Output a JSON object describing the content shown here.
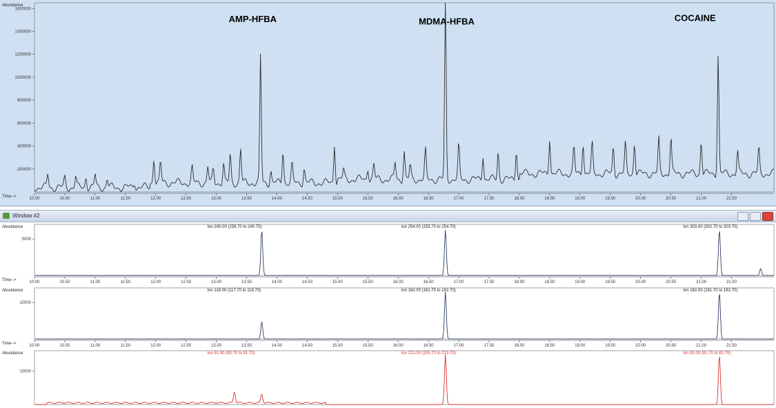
{
  "chart_data": [
    {
      "type": "line",
      "name": "total-ion-chromatogram",
      "ylabel": "Abundance",
      "xlabel": "Time-->",
      "xlim": [
        10.0,
        22.2
      ],
      "ylim": [
        0,
        1650000
      ],
      "y_ticks": [
        200000,
        400000,
        600000,
        800000,
        1000000,
        1200000,
        1400000,
        1600000
      ],
      "y_tick_labels": [
        "200000",
        "400000",
        "600000",
        "800000",
        "1000000",
        "1200000",
        "1400000",
        "1600000"
      ],
      "x_ticks": [
        10.0,
        10.5,
        11.0,
        11.5,
        12.0,
        12.5,
        13.0,
        13.5,
        14.0,
        14.5,
        15.0,
        15.5,
        16.0,
        16.5,
        17.0,
        17.5,
        18.0,
        18.5,
        19.0,
        19.5,
        20.0,
        20.5,
        21.0,
        21.5
      ],
      "x_tick_labels": [
        "10.00",
        "10.50",
        "11.00",
        "11.50",
        "12.00",
        "12.50",
        "13.00",
        "13.50",
        "14.00",
        "14.50",
        "15.00",
        "15.50",
        "16.00",
        "16.50",
        "17.00",
        "17.50",
        "18.00",
        "18.50",
        "19.00",
        "19.50",
        "20.00",
        "20.50",
        "21.00",
        "21.50"
      ],
      "annotations": [
        {
          "text": "AMP-HFBA",
          "x": 13.6,
          "y": 1480000
        },
        {
          "text": "MDMA-HFBA",
          "x": 16.8,
          "y": 1460000
        },
        {
          "text": "COCAINE",
          "x": 20.9,
          "y": 1490000
        }
      ],
      "peaks": [
        {
          "x": 10.22,
          "y": 120000
        },
        {
          "x": 10.5,
          "y": 85000
        },
        {
          "x": 10.68,
          "y": 95000
        },
        {
          "x": 10.85,
          "y": 100000
        },
        {
          "x": 11.0,
          "y": 110000
        },
        {
          "x": 11.2,
          "y": 80000
        },
        {
          "x": 11.65,
          "y": 50000
        },
        {
          "x": 11.97,
          "y": 230000
        },
        {
          "x": 12.08,
          "y": 180000
        },
        {
          "x": 12.6,
          "y": 130000
        },
        {
          "x": 12.86,
          "y": 145000
        },
        {
          "x": 12.95,
          "y": 120000
        },
        {
          "x": 13.12,
          "y": 170000
        },
        {
          "x": 13.23,
          "y": 250000
        },
        {
          "x": 13.4,
          "y": 300000
        },
        {
          "x": 13.73,
          "y": 1120000
        },
        {
          "x": 13.9,
          "y": 110000
        },
        {
          "x": 14.1,
          "y": 300000
        },
        {
          "x": 14.25,
          "y": 160000
        },
        {
          "x": 14.45,
          "y": 130000
        },
        {
          "x": 14.95,
          "y": 350000
        },
        {
          "x": 15.1,
          "y": 80000
        },
        {
          "x": 15.5,
          "y": 110000
        },
        {
          "x": 15.6,
          "y": 130000
        },
        {
          "x": 15.95,
          "y": 150000
        },
        {
          "x": 16.1,
          "y": 250000
        },
        {
          "x": 16.2,
          "y": 120000
        },
        {
          "x": 16.45,
          "y": 250000
        },
        {
          "x": 16.78,
          "y": 1640000
        },
        {
          "x": 17.0,
          "y": 300000
        },
        {
          "x": 17.4,
          "y": 220000
        },
        {
          "x": 17.65,
          "y": 250000
        },
        {
          "x": 17.95,
          "y": 280000
        },
        {
          "x": 18.5,
          "y": 320000
        },
        {
          "x": 18.9,
          "y": 230000
        },
        {
          "x": 19.05,
          "y": 290000
        },
        {
          "x": 19.2,
          "y": 260000
        },
        {
          "x": 19.55,
          "y": 240000
        },
        {
          "x": 19.75,
          "y": 260000
        },
        {
          "x": 19.9,
          "y": 280000
        },
        {
          "x": 20.3,
          "y": 300000
        },
        {
          "x": 20.5,
          "y": 320000
        },
        {
          "x": 21.0,
          "y": 300000
        },
        {
          "x": 21.28,
          "y": 1050000
        },
        {
          "x": 21.6,
          "y": 200000
        },
        {
          "x": 21.95,
          "y": 220000
        }
      ]
    },
    {
      "type": "line",
      "name": "extracted-ion-chromatograms-1",
      "ylabel": "Abundance",
      "xlabel": "Time-->",
      "xlim": [
        10.0,
        22.2
      ],
      "ylim": [
        0,
        7000
      ],
      "y_ticks": [
        5000
      ],
      "y_tick_labels": [
        "5000"
      ],
      "x_ticks": [
        10.0,
        10.5,
        11.0,
        11.5,
        12.0,
        12.5,
        13.0,
        13.5,
        14.0,
        14.5,
        15.0,
        15.5,
        16.0,
        16.5,
        17.0,
        17.5,
        18.0,
        18.5,
        19.0,
        19.5,
        20.0,
        20.5,
        21.0,
        21.5
      ],
      "x_tick_labels": [
        "10.00",
        "10.50",
        "11.00",
        "11.50",
        "12.00",
        "12.50",
        "13.00",
        "13.50",
        "14.00",
        "14.50",
        "15.00",
        "15.50",
        "16.00",
        "16.50",
        "17.00",
        "17.50",
        "18.00",
        "18.50",
        "19.00",
        "19.50",
        "20.00",
        "20.50",
        "21.00",
        "21.50"
      ],
      "series": [
        {
          "name": "Ion 240.00 (239.70 to 240.70)",
          "label_x": 12.85,
          "peaks": [
            {
              "x": 13.75,
              "y": 6300
            }
          ]
        },
        {
          "name": "Ion 254.00 (253.70 to 254.70)",
          "label_x": 16.05,
          "peaks": [
            {
              "x": 16.78,
              "y": 6300
            }
          ]
        },
        {
          "name": "Ion 303.00 (302.70 to 303.70)",
          "label_x": 20.7,
          "peaks": [
            {
              "x": 21.3,
              "y": 6400
            },
            {
              "x": 21.98,
              "y": 950
            }
          ]
        }
      ],
      "color": "#2a3f66"
    },
    {
      "type": "line",
      "name": "extracted-ion-chromatograms-2",
      "ylabel": "Abundance",
      "xlabel": "Time-->",
      "xlim": [
        10.0,
        22.2
      ],
      "ylim": [
        0,
        14000
      ],
      "y_ticks": [
        10000
      ],
      "y_tick_labels": [
        "10000"
      ],
      "x_ticks": [
        10.0,
        10.5,
        11.0,
        11.5,
        12.0,
        12.5,
        13.0,
        13.5,
        14.0,
        14.5,
        15.0,
        15.5,
        16.0,
        16.5,
        17.0,
        17.5,
        18.0,
        18.5,
        19.0,
        19.5,
        20.0,
        20.5,
        21.0,
        21.5
      ],
      "x_tick_labels": [
        "10.00",
        "10.50",
        "11.00",
        "11.50",
        "12.00",
        "12.50",
        "13.00",
        "13.50",
        "14.00",
        "14.50",
        "15.00",
        "15.50",
        "16.00",
        "16.50",
        "17.00",
        "17.50",
        "18.00",
        "18.50",
        "19.00",
        "19.50",
        "20.00",
        "20.50",
        "21.00",
        "21.50"
      ],
      "series": [
        {
          "name": "Ion 118.00 (117.70 to 118.70)",
          "label_x": 12.85,
          "peaks": [
            {
              "x": 13.75,
              "y": 4800
            }
          ]
        },
        {
          "name": "Ion 162.00 (161.70 to 162.70)",
          "label_x": 16.05,
          "peaks": [
            {
              "x": 16.78,
              "y": 13000
            }
          ]
        },
        {
          "name": "Ion 182.00 (181.70 to 182.70)",
          "label_x": 20.7,
          "peaks": [
            {
              "x": 21.3,
              "y": 13000
            }
          ]
        }
      ],
      "color": "#2a3f66"
    },
    {
      "type": "line",
      "name": "extracted-ion-chromatograms-3",
      "ylabel": "Abundance",
      "xlabel": "Time-->",
      "xlim": [
        10.0,
        22.2
      ],
      "ylim": [
        0,
        16000
      ],
      "y_ticks": [
        10000
      ],
      "y_tick_labels": [
        "10000"
      ],
      "x_ticks": [
        10.0,
        10.5,
        11.0,
        11.5,
        12.0,
        12.5,
        13.0,
        13.5,
        14.0,
        14.5,
        15.0,
        15.5,
        16.0,
        16.5,
        17.0,
        17.5,
        18.0,
        18.5,
        19.0,
        19.5,
        20.0,
        20.5,
        21.0,
        21.5
      ],
      "x_tick_labels": [
        "10.00",
        "10.50",
        "11.00",
        "11.50",
        "12.00",
        "12.50",
        "13.00",
        "13.50",
        "14.00",
        "14.50",
        "15.00",
        "15.50",
        "16.00",
        "16.50",
        "17.00",
        "17.50",
        "18.00",
        "18.50",
        "19.00",
        "19.50",
        "20.00",
        "20.50",
        "21.00",
        "21.50"
      ],
      "series": [
        {
          "name": "Ion 91.00 (90.70 to 91.70)",
          "label_x": 12.85,
          "peaks": [
            {
              "x": 13.3,
              "y": 3500
            },
            {
              "x": 13.75,
              "y": 2700
            }
          ]
        },
        {
          "name": "Ion 213.00 (205.70 to 213.70)",
          "label_x": 16.05,
          "peaks": [
            {
              "x": 16.78,
              "y": 15000
            }
          ]
        },
        {
          "name": "Ion 82.00 (81.70 to 82.70)",
          "label_x": 20.7,
          "peaks": [
            {
              "x": 21.3,
              "y": 15000
            }
          ]
        }
      ],
      "color": "#d9302e",
      "label_color": "#d9302e"
    }
  ],
  "window": {
    "title": "Window #2"
  }
}
